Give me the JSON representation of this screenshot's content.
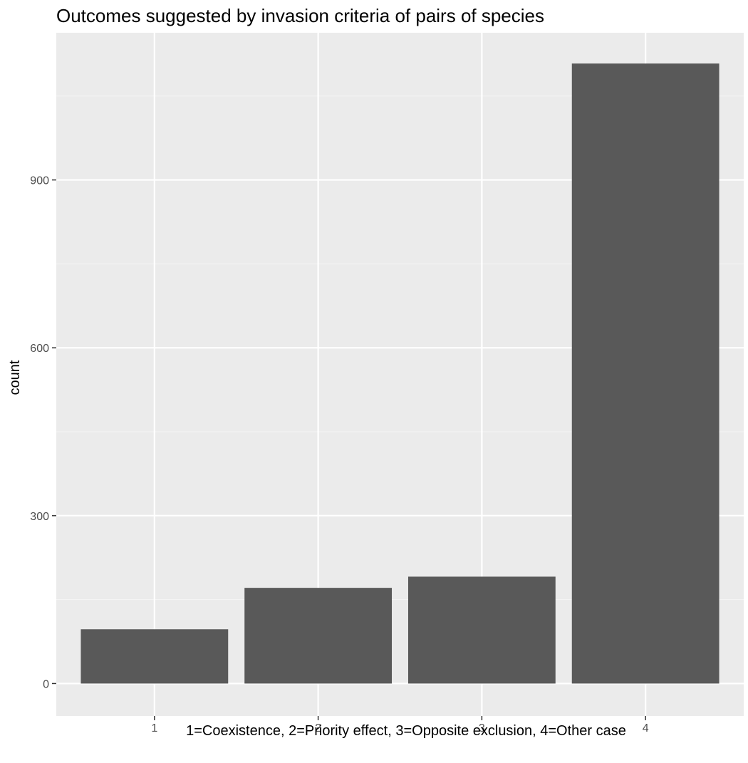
{
  "chart_data": {
    "type": "bar",
    "title": "Outcomes suggested by invasion criteria of pairs of species",
    "xlabel": "1=Coexistence, 2=Priority effect, 3=Opposite exclusion, 4=Other case",
    "ylabel": "count",
    "categories": [
      "1",
      "2",
      "3",
      "4"
    ],
    "values": [
      97,
      171,
      191,
      1108
    ],
    "ylim": [
      -58,
      1163
    ],
    "yticks": [
      0,
      300,
      600,
      900
    ],
    "yticks_labels": [
      "0",
      "300",
      "600",
      "900"
    ],
    "minor_yticks": [
      150,
      450,
      750,
      1050
    ],
    "grid": true,
    "legend": "none",
    "colors": {
      "bar": "#595959",
      "panel_background": "#EBEBEB",
      "grid_major": "#FFFFFF",
      "grid_minor": "#F5F5F5",
      "tick_text": "#4D4D4D",
      "tick_mark": "#333333"
    }
  }
}
